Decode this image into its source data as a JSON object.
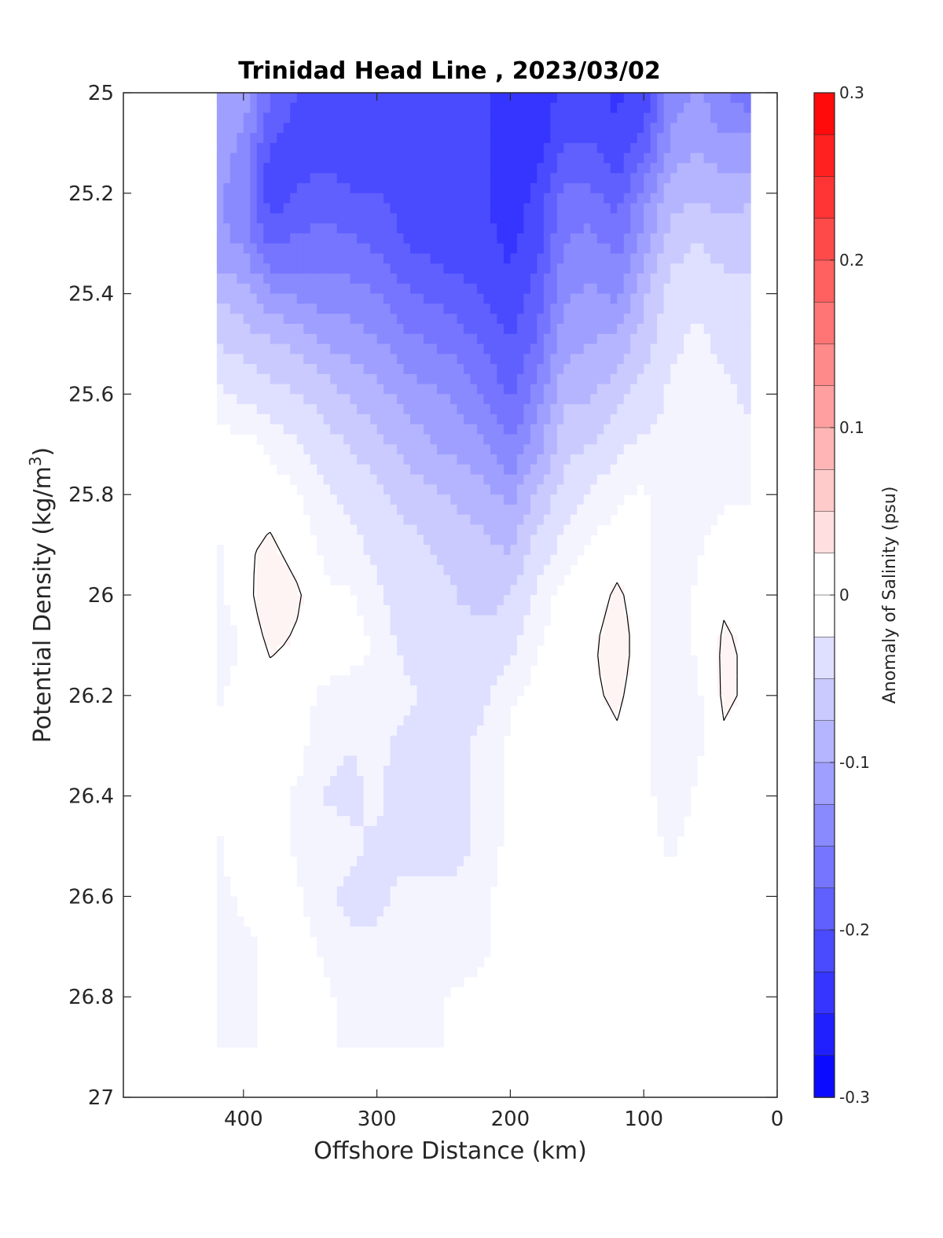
{
  "chart_data": {
    "type": "heatmap",
    "title": "Trinidad Head Line , 2023/03/02",
    "xlabel": "Offshore Distance (km)",
    "ylabel_main": "Potential Density (kg/m",
    "ylabel_sup": "3",
    "ylabel_close": ")",
    "xlim": [
      490,
      0
    ],
    "ylim": [
      25,
      27
    ],
    "y_reversed": true,
    "x_reversed": true,
    "x_ticks": [
      400,
      300,
      200,
      100,
      0
    ],
    "y_ticks": [
      25,
      25.2,
      25.4,
      25.6,
      25.8,
      26,
      26.2,
      26.4,
      26.6,
      26.8,
      27
    ],
    "x_tick_labels": [
      "400",
      "300",
      "200",
      "100",
      "0"
    ],
    "y_tick_labels": [
      "25",
      "25.2",
      "25.4",
      "25.6",
      "25.8",
      "26",
      "26.2",
      "26.4",
      "26.6",
      "26.8",
      "27"
    ],
    "colorbar": {
      "label": "Anomaly of Salinity (psu)",
      "range": [
        -0.3,
        0.3
      ],
      "step": 0.025,
      "tick_values": [
        0.3,
        0.2,
        0.1,
        0,
        -0.1,
        -0.2,
        -0.3
      ],
      "tick_labels": [
        "0.3",
        "0.2",
        "0.1",
        "0",
        "-0.1",
        "-0.2",
        "-0.3"
      ],
      "colormap": "blue-white-red"
    },
    "grid": false,
    "data_extent_x": [
      420,
      20
    ],
    "columns": [
      {
        "x": 420,
        "values": [
          -0.1,
          -0.11,
          -0.12,
          -0.12,
          -0.08,
          -0.05,
          -0.02,
          0.0,
          0.0,
          -0.01,
          -0.01,
          -0.02,
          -0.01,
          -0.005,
          0.0,
          -0.01,
          -0.01,
          -0.02,
          -0.02
        ]
      },
      {
        "x": 400,
        "values": [
          -0.11,
          -0.13,
          -0.14,
          -0.13,
          -0.09,
          -0.06,
          -0.03,
          0.0,
          0.0,
          0.005,
          0.0,
          -0.005,
          0.0,
          0.0,
          0.0,
          0.0,
          -0.005,
          -0.01,
          -0.01
        ]
      },
      {
        "x": 380,
        "values": [
          -0.17,
          -0.2,
          -0.22,
          -0.18,
          -0.12,
          -0.07,
          -0.04,
          -0.01,
          0.0,
          0.01,
          0.02,
          0.01,
          0.0,
          0.0,
          0.0,
          0.0,
          0.0,
          -0.005,
          -0.005
        ]
      },
      {
        "x": 360,
        "values": [
          -0.2,
          -0.21,
          -0.2,
          -0.17,
          -0.13,
          -0.08,
          -0.05,
          -0.02,
          -0.005,
          0.0,
          0.01,
          0.005,
          0.0,
          0.0,
          -0.01,
          -0.01,
          -0.005,
          0.0,
          0.0
        ]
      },
      {
        "x": 340,
        "values": [
          -0.21,
          -0.21,
          -0.19,
          -0.16,
          -0.14,
          -0.1,
          -0.06,
          -0.04,
          -0.02,
          -0.01,
          -0.005,
          0.0,
          -0.01,
          -0.02,
          -0.025,
          -0.02,
          -0.02,
          -0.01,
          -0.005
        ]
      },
      {
        "x": 320,
        "values": [
          -0.21,
          -0.21,
          -0.2,
          -0.17,
          -0.14,
          -0.11,
          -0.08,
          -0.05,
          -0.03,
          -0.02,
          -0.005,
          0.0,
          -0.015,
          -0.025,
          -0.03,
          -0.02,
          -0.03,
          -0.02,
          -0.01
        ]
      },
      {
        "x": 300,
        "values": [
          -0.21,
          -0.21,
          -0.2,
          -0.18,
          -0.15,
          -0.12,
          -0.09,
          -0.07,
          -0.04,
          -0.03,
          -0.02,
          -0.01,
          -0.01,
          -0.02,
          -0.02,
          -0.03,
          -0.03,
          -0.02,
          -0.01
        ]
      },
      {
        "x": 280,
        "values": [
          -0.21,
          -0.21,
          -0.21,
          -0.2,
          -0.17,
          -0.14,
          -0.11,
          -0.08,
          -0.06,
          -0.04,
          -0.04,
          -0.03,
          -0.02,
          -0.03,
          -0.04,
          -0.03,
          -0.02,
          -0.02,
          -0.02
        ]
      },
      {
        "x": 260,
        "values": [
          -0.22,
          -0.22,
          -0.22,
          -0.21,
          -0.18,
          -0.15,
          -0.12,
          -0.1,
          -0.07,
          -0.05,
          -0.04,
          -0.03,
          -0.03,
          -0.045,
          -0.05,
          -0.03,
          -0.02,
          -0.02,
          -0.01
        ]
      },
      {
        "x": 240,
        "values": [
          -0.22,
          -0.22,
          -0.22,
          -0.22,
          -0.19,
          -0.16,
          -0.13,
          -0.11,
          -0.08,
          -0.06,
          -0.05,
          -0.04,
          -0.03,
          -0.03,
          -0.03,
          -0.03,
          -0.02,
          -0.02,
          -0.005
        ]
      },
      {
        "x": 220,
        "values": [
          -0.22,
          -0.22,
          -0.22,
          -0.22,
          -0.2,
          -0.18,
          -0.15,
          -0.12,
          -0.09,
          -0.07,
          -0.06,
          -0.04,
          -0.03,
          -0.02,
          -0.02,
          -0.02,
          -0.01,
          -0.01,
          0.0
        ]
      },
      {
        "x": 200,
        "values": [
          -0.25,
          -0.25,
          -0.24,
          -0.23,
          -0.22,
          -0.2,
          -0.18,
          -0.15,
          -0.11,
          -0.08,
          -0.05,
          -0.03,
          -0.01,
          -0.005,
          0.0,
          0.0,
          0.0,
          0.0,
          0.0
        ]
      },
      {
        "x": 180,
        "values": [
          -0.24,
          -0.24,
          -0.22,
          -0.21,
          -0.19,
          -0.17,
          -0.14,
          -0.11,
          -0.07,
          -0.04,
          -0.02,
          -0.01,
          0.0,
          0.0,
          0.0,
          0.0,
          0.0,
          0.0,
          0.0
        ]
      },
      {
        "x": 160,
        "values": [
          -0.22,
          -0.2,
          -0.17,
          -0.15,
          -0.13,
          -0.11,
          -0.08,
          -0.06,
          -0.04,
          -0.02,
          0.0,
          0.005,
          0.0,
          0.0,
          0.0,
          0.0,
          0.0,
          0.0,
          0.0
        ]
      },
      {
        "x": 140,
        "values": [
          -0.22,
          -0.2,
          -0.17,
          -0.14,
          -0.12,
          -0.1,
          -0.08,
          -0.05,
          -0.02,
          -0.005,
          0.0,
          0.005,
          0.005,
          0.0,
          0.0,
          0.0,
          0.0,
          0.0,
          0.0
        ]
      },
      {
        "x": 120,
        "values": [
          -0.23,
          -0.22,
          -0.19,
          -0.16,
          -0.13,
          -0.09,
          -0.06,
          -0.03,
          -0.01,
          0.0,
          0.01,
          0.015,
          0.01,
          0.005,
          0.0,
          0.0,
          0.0,
          0.0,
          0.0
        ]
      },
      {
        "x": 100,
        "values": [
          -0.22,
          -0.19,
          -0.14,
          -0.11,
          -0.08,
          -0.06,
          -0.04,
          -0.02,
          -0.005,
          0.0,
          0.0,
          0.0,
          0.0,
          0.0,
          0.0,
          0.0,
          0.0,
          0.0,
          0.0
        ]
      },
      {
        "x": 80,
        "values": [
          -0.14,
          -0.12,
          -0.09,
          -0.06,
          -0.04,
          -0.03,
          -0.02,
          -0.02,
          -0.02,
          -0.02,
          -0.02,
          -0.02,
          -0.02,
          -0.02,
          -0.02,
          -0.01,
          -0.005,
          0.0,
          0.0
        ]
      },
      {
        "x": 60,
        "values": [
          -0.12,
          -0.1,
          -0.08,
          -0.05,
          -0.03,
          -0.02,
          -0.02,
          -0.02,
          -0.015,
          -0.01,
          -0.005,
          -0.005,
          -0.01,
          -0.01,
          -0.005,
          0.0,
          0.0,
          0.0,
          0.0
        ]
      },
      {
        "x": 40,
        "values": [
          -0.15,
          -0.12,
          -0.09,
          -0.06,
          -0.04,
          -0.03,
          -0.02,
          -0.02,
          -0.01,
          0.0,
          0.005,
          0.01,
          0.01,
          0.005,
          0.0,
          0.0,
          0.0,
          0.0,
          0.0
        ]
      },
      {
        "x": 20,
        "values": [
          -0.17,
          -0.12,
          -0.08,
          -0.06,
          -0.04,
          -0.03,
          -0.03,
          -0.02,
          -0.01,
          0.0,
          0.0,
          0.005,
          0.005,
          0.0,
          0.0,
          0.0,
          0.0,
          0.0,
          0.0
        ]
      }
    ],
    "column_y": [
      25.0,
      25.1,
      25.2,
      25.3,
      25.4,
      25.5,
      25.6,
      25.7,
      25.8,
      25.9,
      26.0,
      26.1,
      26.2,
      26.3,
      26.4,
      26.5,
      26.6,
      26.7,
      26.8
    ]
  }
}
